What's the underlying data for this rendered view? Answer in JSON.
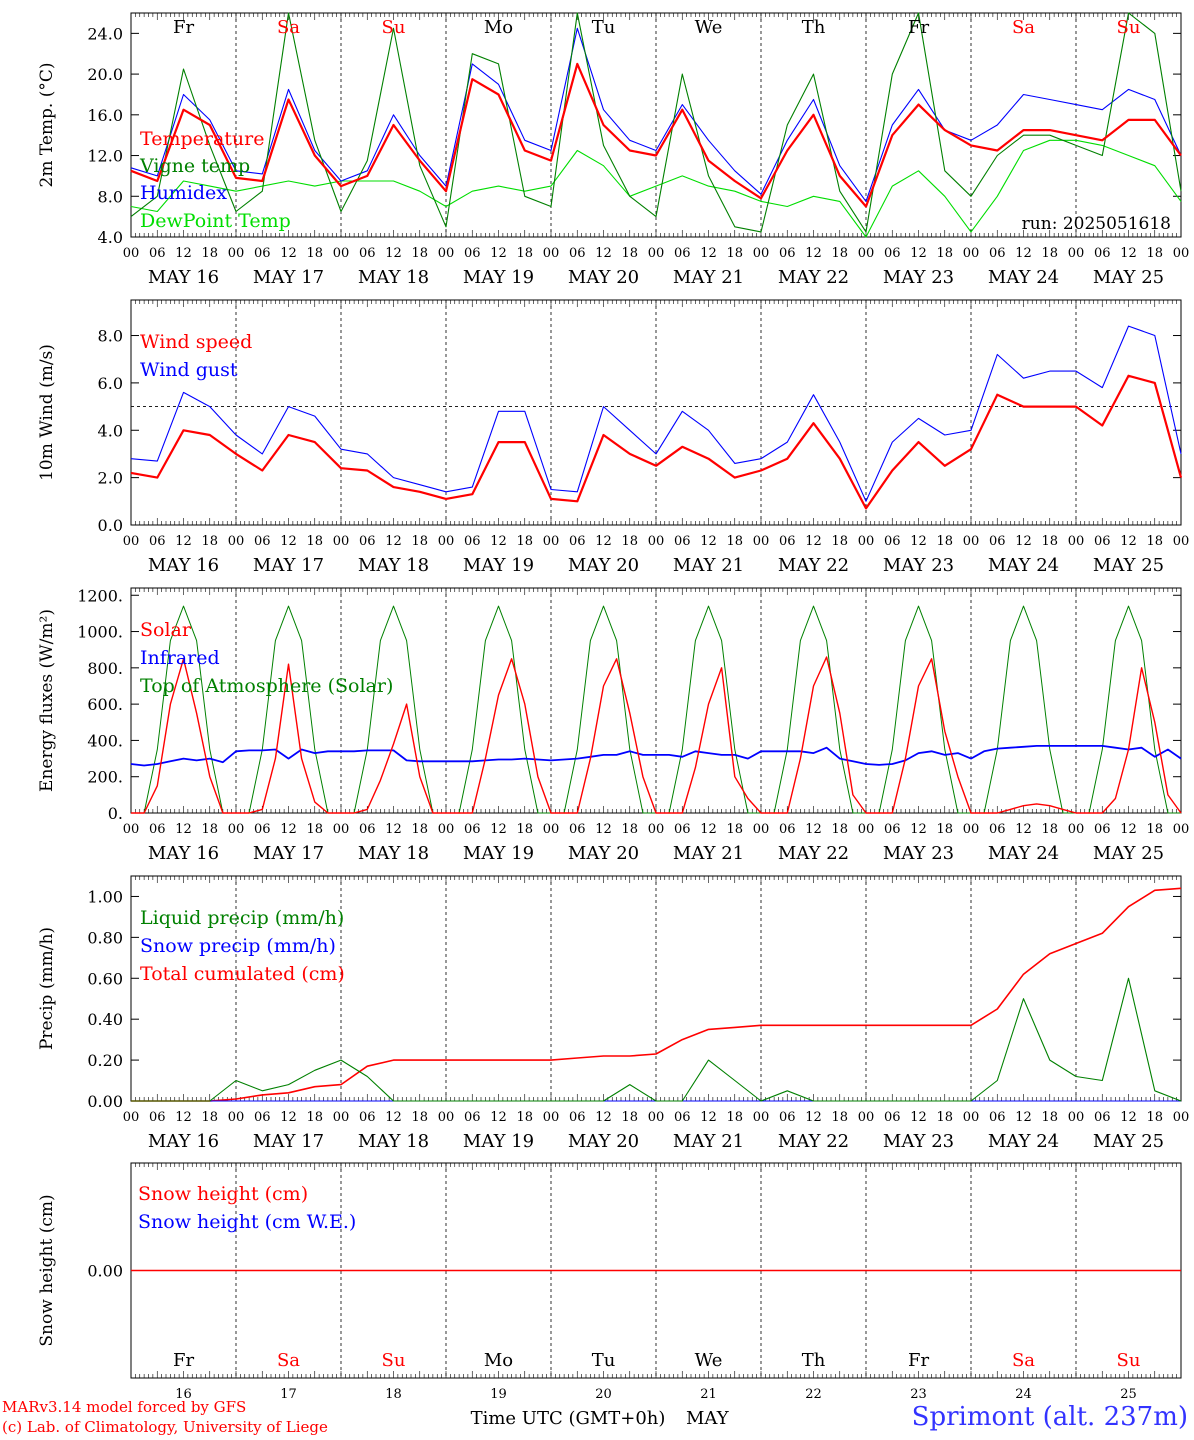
{
  "days": [
    {
      "date": "MAY 16",
      "short": "16",
      "weekday": "Fr",
      "weekend": false
    },
    {
      "date": "MAY 17",
      "short": "17",
      "weekday": "Sa",
      "weekend": true
    },
    {
      "date": "MAY 18",
      "short": "18",
      "weekday": "Su",
      "weekend": true
    },
    {
      "date": "MAY 19",
      "short": "19",
      "weekday": "Mo",
      "weekend": false
    },
    {
      "date": "MAY 20",
      "short": "20",
      "weekday": "Tu",
      "weekend": false
    },
    {
      "date": "MAY 21",
      "short": "21",
      "weekday": "We",
      "weekend": false
    },
    {
      "date": "MAY 22",
      "short": "22",
      "weekday": "Th",
      "weekend": false
    },
    {
      "date": "MAY 23",
      "short": "23",
      "weekday": "Fr",
      "weekend": false
    },
    {
      "date": "MAY 24",
      "short": "24",
      "weekday": "Sa",
      "weekend": true
    },
    {
      "date": "MAY 25",
      "short": "25",
      "weekday": "Su",
      "weekend": true
    }
  ],
  "hour_ticks": [
    "00",
    "06",
    "12",
    "18"
  ],
  "time_label": "Time UTC (GMT+0h)",
  "month_label": "MAY",
  "credit_lines": [
    "MARv3.14 model forced by GFS",
    "(c) Lab. of Climatology, University of Liege"
  ],
  "station": "Sprimont (alt. 237m)",
  "colors": {
    "red": "#ff0000",
    "green": "#008000",
    "blue": "#0000ff",
    "lime": "#00dd00",
    "weekend": "#ff0000"
  },
  "chart_data": [
    {
      "type": "line",
      "ylabel": "2m Temp. (°C)",
      "ylim": [
        4,
        26
      ],
      "yticks": [
        4,
        8,
        12,
        16,
        20,
        24
      ],
      "ytick_labels": [
        "4.0",
        "8.0",
        "12.0",
        "16.0",
        "20.0",
        "24.0"
      ],
      "annotation": "run: 2025051618",
      "show_weekdays_top": true,
      "x": [
        0,
        6,
        12,
        18,
        24,
        30,
        36,
        42,
        48,
        54,
        60,
        66,
        72,
        78,
        84,
        90,
        96,
        102,
        108,
        114,
        120,
        126,
        132,
        138,
        144,
        150,
        156,
        162,
        168,
        174,
        180,
        186,
        192,
        198,
        204,
        210,
        216,
        222,
        228,
        234,
        240
      ],
      "series": [
        {
          "name": "Temperature",
          "color": "#ff0000",
          "width": 2.2,
          "values": [
            10.5,
            9.5,
            16.5,
            15.0,
            9.8,
            9.5,
            17.5,
            12.0,
            9.0,
            10.0,
            15.0,
            11.5,
            8.5,
            19.5,
            18.0,
            12.5,
            11.5,
            21.0,
            15.0,
            12.5,
            12.0,
            16.5,
            11.5,
            9.5,
            7.8,
            12.5,
            16.0,
            10.0,
            7.0,
            14.0,
            17.0,
            14.5,
            13.0,
            12.5,
            14.5,
            14.5,
            14.0,
            13.5,
            15.5,
            15.5,
            12.0
          ]
        },
        {
          "name": "Vigne temp",
          "color": "#008000",
          "width": 1.1,
          "values": [
            6.0,
            8.0,
            20.5,
            13.0,
            6.5,
            8.5,
            27.0,
            13.5,
            6.5,
            11.5,
            24.5,
            11.0,
            5.0,
            22.0,
            21.0,
            8.0,
            7.0,
            27.0,
            13.0,
            8.0,
            6.0,
            20.0,
            10.0,
            5.0,
            4.5,
            15.0,
            20.0,
            8.5,
            4.5,
            20.0,
            27.0,
            10.5,
            8.0,
            12.0,
            14.0,
            14.0,
            13.0,
            12.0,
            26.0,
            24.0,
            8.5
          ]
        },
        {
          "name": "Humidex",
          "color": "#0000ff",
          "width": 1.1,
          "values": [
            10.8,
            10.0,
            18.0,
            15.5,
            10.5,
            10.2,
            18.5,
            12.5,
            9.5,
            10.5,
            16.0,
            12.0,
            9.0,
            21.0,
            19.0,
            13.5,
            12.5,
            24.5,
            16.5,
            13.5,
            12.5,
            17.0,
            13.5,
            10.5,
            8.2,
            13.5,
            17.5,
            11.0,
            7.5,
            15.0,
            18.5,
            14.5,
            13.5,
            15.0,
            18.0,
            17.5,
            17.0,
            16.5,
            18.5,
            17.5,
            12.0
          ]
        },
        {
          "name": "DewPoint Temp",
          "color": "#00dd00",
          "width": 1.1,
          "values": [
            7.0,
            6.5,
            9.5,
            9.0,
            8.5,
            9.0,
            9.5,
            9.0,
            9.5,
            9.5,
            9.5,
            8.5,
            7.0,
            8.5,
            9.0,
            8.5,
            9.0,
            12.5,
            11.0,
            8.0,
            9.0,
            10.0,
            9.0,
            8.5,
            7.5,
            7.0,
            8.0,
            7.5,
            4.0,
            9.0,
            10.5,
            8.0,
            4.5,
            8.0,
            12.5,
            13.5,
            13.5,
            13.0,
            12.0,
            11.0,
            7.5
          ]
        }
      ]
    },
    {
      "type": "line",
      "ylabel": "10m Wind (m/s)",
      "ylim": [
        0,
        9.5
      ],
      "yticks": [
        0,
        2,
        4,
        6,
        8
      ],
      "ytick_labels": [
        "0.0",
        "2.0",
        "4.0",
        "6.0",
        "8.0"
      ],
      "reference_line": 5.0,
      "x": [
        0,
        6,
        12,
        18,
        24,
        30,
        36,
        42,
        48,
        54,
        60,
        66,
        72,
        78,
        84,
        90,
        96,
        102,
        108,
        114,
        120,
        126,
        132,
        138,
        144,
        150,
        156,
        162,
        168,
        174,
        180,
        186,
        192,
        198,
        204,
        210,
        216,
        222,
        228,
        234,
        240
      ],
      "series": [
        {
          "name": "Wind speed",
          "color": "#ff0000",
          "width": 2.2,
          "values": [
            2.2,
            2.0,
            4.0,
            3.8,
            3.0,
            2.3,
            3.8,
            3.5,
            2.4,
            2.3,
            1.6,
            1.4,
            1.1,
            1.3,
            3.5,
            3.5,
            1.1,
            1.0,
            3.8,
            3.0,
            2.5,
            3.3,
            2.8,
            2.0,
            2.3,
            2.8,
            4.3,
            2.8,
            0.7,
            2.3,
            3.5,
            2.5,
            3.2,
            5.5,
            5.0,
            5.0,
            5.0,
            4.2,
            6.3,
            6.0,
            2.0
          ]
        },
        {
          "name": "Wind gust",
          "color": "#0000ff",
          "width": 1.1,
          "values": [
            2.8,
            2.7,
            5.6,
            5.0,
            3.8,
            3.0,
            5.0,
            4.6,
            3.2,
            3.0,
            2.0,
            1.7,
            1.4,
            1.6,
            4.8,
            4.8,
            1.5,
            1.4,
            5.0,
            4.0,
            3.0,
            4.8,
            4.0,
            2.6,
            2.8,
            3.5,
            5.5,
            3.5,
            1.0,
            3.5,
            4.5,
            3.8,
            4.0,
            7.2,
            6.2,
            6.5,
            6.5,
            5.8,
            8.4,
            8.0,
            3.0
          ]
        }
      ]
    },
    {
      "type": "line",
      "ylabel": "Energy fluxes (W/m²)",
      "ylim": [
        0,
        1240
      ],
      "yticks": [
        0,
        200,
        400,
        600,
        800,
        1000,
        1200
      ],
      "ytick_labels": [
        "0.",
        "200.",
        "400.",
        "600.",
        "800.",
        "1000.",
        "1200."
      ],
      "x": [
        0,
        3,
        6,
        9,
        12,
        15,
        18,
        21,
        24,
        27,
        30,
        33,
        36,
        39,
        42,
        45,
        48,
        51,
        54,
        57,
        60,
        63,
        66,
        69,
        72,
        75,
        78,
        81,
        84,
        87,
        90,
        93,
        96,
        99,
        102,
        105,
        108,
        111,
        114,
        117,
        120,
        123,
        126,
        129,
        132,
        135,
        138,
        141,
        144,
        147,
        150,
        153,
        156,
        159,
        162,
        165,
        168,
        171,
        174,
        177,
        180,
        183,
        186,
        189,
        192,
        195,
        198,
        201,
        204,
        207,
        210,
        213,
        216,
        219,
        222,
        225,
        228,
        231,
        234,
        237,
        240
      ],
      "series": [
        {
          "name": "Solar",
          "color": "#ff0000",
          "width": 1.4,
          "values": [
            0,
            0,
            150,
            600,
            850,
            550,
            200,
            0,
            0,
            0,
            20,
            300,
            820,
            300,
            60,
            0,
            0,
            0,
            20,
            180,
            380,
            600,
            200,
            0,
            0,
            0,
            0,
            300,
            650,
            850,
            600,
            200,
            0,
            0,
            0,
            300,
            700,
            850,
            550,
            200,
            0,
            0,
            0,
            250,
            600,
            800,
            200,
            80,
            0,
            0,
            0,
            300,
            700,
            860,
            550,
            100,
            0,
            0,
            0,
            300,
            700,
            850,
            450,
            200,
            0,
            0,
            0,
            20,
            40,
            50,
            40,
            20,
            0,
            0,
            0,
            80,
            350,
            800,
            500,
            100,
            0
          ]
        },
        {
          "name": "Infrared",
          "color": "#0000ff",
          "width": 1.8,
          "values": [
            270,
            262,
            270,
            285,
            300,
            290,
            300,
            280,
            340,
            345,
            345,
            350,
            300,
            350,
            330,
            340,
            340,
            340,
            345,
            345,
            345,
            290,
            285,
            285,
            285,
            285,
            285,
            290,
            295,
            295,
            300,
            295,
            290,
            295,
            300,
            310,
            320,
            320,
            340,
            320,
            320,
            320,
            310,
            340,
            330,
            320,
            320,
            300,
            340,
            340,
            340,
            340,
            330,
            360,
            300,
            285,
            270,
            265,
            270,
            290,
            330,
            340,
            320,
            330,
            300,
            340,
            355,
            360,
            365,
            370,
            370,
            370,
            370,
            370,
            370,
            360,
            350,
            360,
            310,
            350,
            300
          ]
        },
        {
          "name": "Top of Atmosphere (Solar)",
          "color": "#008000",
          "width": 1.0,
          "values": [
            0,
            0,
            350,
            950,
            1140,
            950,
            350,
            0,
            0,
            0,
            350,
            950,
            1140,
            950,
            350,
            0,
            0,
            0,
            350,
            950,
            1140,
            950,
            350,
            0,
            0,
            0,
            350,
            950,
            1140,
            950,
            350,
            0,
            0,
            0,
            350,
            950,
            1140,
            950,
            350,
            0,
            0,
            0,
            350,
            950,
            1140,
            950,
            350,
            0,
            0,
            0,
            350,
            950,
            1140,
            950,
            350,
            0,
            0,
            0,
            350,
            950,
            1140,
            950,
            350,
            0,
            0,
            0,
            350,
            950,
            1140,
            950,
            350,
            0,
            0,
            0,
            350,
            950,
            1140,
            950,
            350,
            0,
            0
          ]
        }
      ]
    },
    {
      "type": "line",
      "ylabel": "Precip (mm/h)",
      "ylim": [
        0,
        1.1
      ],
      "yticks": [
        0,
        0.2,
        0.4,
        0.6,
        0.8,
        1.0
      ],
      "ytick_labels": [
        "0.00",
        "0.20",
        "0.40",
        "0.60",
        "0.80",
        "1.00"
      ],
      "x": [
        0,
        6,
        12,
        18,
        24,
        30,
        36,
        42,
        48,
        54,
        60,
        66,
        72,
        78,
        84,
        90,
        96,
        102,
        108,
        114,
        120,
        126,
        132,
        138,
        144,
        150,
        156,
        162,
        168,
        174,
        180,
        186,
        192,
        198,
        204,
        210,
        216,
        222,
        228,
        234,
        240
      ],
      "series": [
        {
          "name": "Liquid precip (mm/h)",
          "color": "#008000",
          "width": 1.1,
          "values": [
            0,
            0,
            0,
            0,
            0.1,
            0.05,
            0.08,
            0.15,
            0.2,
            0.12,
            0,
            0,
            0,
            0,
            0,
            0,
            0,
            0,
            0,
            0.08,
            0,
            0,
            0.2,
            0.1,
            0,
            0.05,
            0,
            0,
            0,
            0,
            0,
            0,
            0,
            0.1,
            0.5,
            0.2,
            0.12,
            0.1,
            0.6,
            0.05,
            0
          ]
        },
        {
          "name": "Snow precip (mm/h)",
          "color": "#0000ff",
          "width": 1.1,
          "values": [
            0,
            0,
            0,
            0,
            0,
            0,
            0,
            0,
            0,
            0,
            0,
            0,
            0,
            0,
            0,
            0,
            0,
            0,
            0,
            0,
            0,
            0,
            0,
            0,
            0,
            0,
            0,
            0,
            0,
            0,
            0,
            0,
            0,
            0,
            0,
            0,
            0,
            0,
            0,
            0,
            0
          ]
        },
        {
          "name": "Total cumulated (cm)",
          "color": "#ff0000",
          "width": 1.6,
          "values": [
            0,
            0,
            0,
            0,
            0.01,
            0.03,
            0.04,
            0.07,
            0.08,
            0.17,
            0.2,
            0.2,
            0.2,
            0.2,
            0.2,
            0.2,
            0.2,
            0.21,
            0.22,
            0.22,
            0.23,
            0.3,
            0.35,
            0.36,
            0.37,
            0.37,
            0.37,
            0.37,
            0.37,
            0.37,
            0.37,
            0.37,
            0.37,
            0.45,
            0.62,
            0.72,
            0.77,
            0.82,
            0.95,
            1.03,
            1.04
          ]
        }
      ]
    },
    {
      "type": "line",
      "ylabel": "Snow height (cm)",
      "ylim": [
        -1,
        1
      ],
      "yticks": [
        0
      ],
      "ytick_labels": [
        "0.00"
      ],
      "show_weekdays_bottom": true,
      "x": [
        0,
        240
      ],
      "series": [
        {
          "name": "Snow height (cm)",
          "color": "#ff0000",
          "width": 1.4,
          "values": [
            0,
            0
          ]
        },
        {
          "name": "Snow height (cm W.E.)",
          "color": "#0000ff",
          "width": 1.4,
          "values": [
            0,
            0
          ],
          "hidden_line": true
        }
      ]
    }
  ]
}
